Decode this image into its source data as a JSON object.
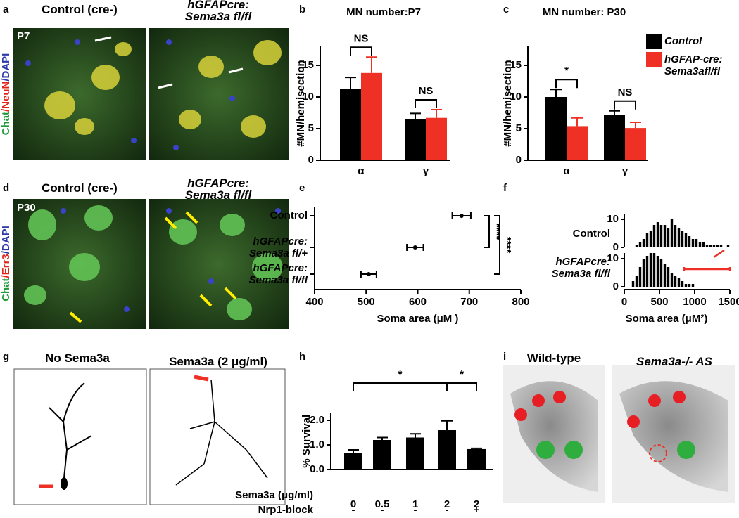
{
  "panels": {
    "a": {
      "label": "a",
      "title_left": "Control (cre-)",
      "title_right": "hGFAPcre:\nSema3a fl/fl",
      "side": [
        "Chat",
        "/NeuN",
        "/DAPI"
      ],
      "stage": "P7"
    },
    "b": {
      "label": "b"
    },
    "c": {
      "label": "c"
    },
    "d": {
      "label": "d",
      "title_left": "Control (cre-)",
      "title_right": "hGFAPcre:\nSema3a fl/fl",
      "side": [
        "Chat",
        "/Err3",
        "/DAPI"
      ],
      "stage": "P30"
    },
    "e": {
      "label": "e"
    },
    "f": {
      "label": "f"
    },
    "g": {
      "label": "g",
      "title_left": "No Sema3a",
      "title_right": "Sema3a (2 μg/ml)"
    },
    "h": {
      "label": "h"
    },
    "i": {
      "label": "i",
      "title_left": "Wild-type",
      "title_right": "Sema3a-/- AS"
    }
  },
  "chart_data": [
    {
      "type": "bar",
      "title": "MN number:P7",
      "ylabel": "#MN/hemisection",
      "categories": [
        "α",
        "γ"
      ],
      "series": [
        {
          "color": "#000000",
          "values": [
            11.3,
            6.5
          ],
          "errors": [
            1.8,
            0.9
          ]
        },
        {
          "color": "#ee3124",
          "values": [
            13.8,
            6.7
          ],
          "errors": [
            2.5,
            1.3
          ]
        }
      ],
      "ylim": [
        0,
        18
      ],
      "yticks": [
        0,
        5,
        10,
        15
      ],
      "annotations": [
        "NS",
        "NS"
      ]
    },
    {
      "type": "bar",
      "title": "MN number: P30",
      "ylabel": "#MN/hemisection",
      "categories": [
        "α",
        "γ"
      ],
      "series": [
        {
          "name": "Control",
          "color": "#000000",
          "values": [
            10.0,
            7.2
          ],
          "errors": [
            1.2,
            0.6
          ]
        },
        {
          "name": "hGFAP-cre:\nSema3afl/fl",
          "color": "#ee3124",
          "values": [
            5.4,
            5.1
          ],
          "errors": [
            1.3,
            0.9
          ]
        }
      ],
      "ylim": [
        0,
        18
      ],
      "yticks": [
        0,
        5,
        10,
        15
      ],
      "annotations": [
        "*",
        "NS"
      ],
      "legend": "upper right"
    },
    {
      "type": "dot",
      "categories": [
        "Control",
        "hGFAPcre:\nSema3a fl/+",
        "hGFAPcre:\nSema3a fl/fl"
      ],
      "values": [
        685,
        595,
        505
      ],
      "errors": [
        18,
        16,
        15
      ],
      "color": "#000000",
      "xlim": [
        400,
        800
      ],
      "xticks": [
        400,
        500,
        600,
        700,
        800
      ],
      "xlabel": "Soma area (μM )",
      "annotations": [
        "****",
        "****"
      ]
    },
    {
      "type": "histogram",
      "title": "Control",
      "bins": [
        150,
        200,
        250,
        300,
        350,
        400,
        450,
        500,
        550,
        600,
        650,
        700,
        750,
        800,
        850,
        900,
        950,
        1000,
        1050,
        1100,
        1150,
        1200,
        1250,
        1300,
        1350,
        1400,
        1450,
        1500
      ],
      "values": [
        1,
        2,
        3,
        5,
        6,
        8,
        9,
        8,
        8,
        7,
        10,
        8,
        7,
        6,
        5,
        4,
        3,
        3,
        2,
        2,
        1,
        1,
        1,
        1,
        1,
        0,
        1
      ],
      "color": "#000000",
      "xlim": [
        0,
        1500
      ],
      "ylim": [
        0,
        12
      ],
      "yticks": [
        0,
        10
      ]
    },
    {
      "type": "histogram",
      "title": "hGFAPcre:\nSema3a fl/fl",
      "bins": [
        100,
        150,
        200,
        250,
        300,
        350,
        400,
        450,
        500,
        550,
        600,
        650,
        700,
        750,
        800,
        850,
        900,
        950,
        1000
      ],
      "values": [
        2,
        4,
        7,
        10,
        11,
        12,
        12,
        11,
        10,
        8,
        7,
        5,
        4,
        3,
        2,
        1,
        1,
        1
      ],
      "color": "#000000",
      "xlim": [
        0,
        1500
      ],
      "ylim": [
        0,
        12
      ],
      "yticks": [
        0,
        10
      ],
      "xticks": [
        0,
        500,
        1000,
        1500
      ],
      "xlabel": "Soma area (μM²)"
    },
    {
      "type": "bar",
      "ylabel": "% Survival",
      "categories": [
        "0",
        "0.5",
        "1",
        "2",
        "2"
      ],
      "series": [
        {
          "color": "#000000",
          "values": [
            0.68,
            1.2,
            1.3,
            1.6,
            0.83
          ],
          "errors": [
            0.12,
            0.1,
            0.15,
            0.38,
            0.03
          ]
        }
      ],
      "ylim": [
        0,
        2.3
      ],
      "yticks": [
        {
          "value": 0,
          "label": "0.0"
        },
        {
          "value": 1,
          "label": "1.0"
        },
        {
          "value": 2,
          "label": "2.0"
        }
      ],
      "xlabel": "Sema3a (μg/ml)",
      "row2_label": "Nrp1-block",
      "row2": [
        "-",
        "-",
        "-",
        "-",
        "+"
      ],
      "annotations": [
        "*",
        "*"
      ]
    }
  ]
}
